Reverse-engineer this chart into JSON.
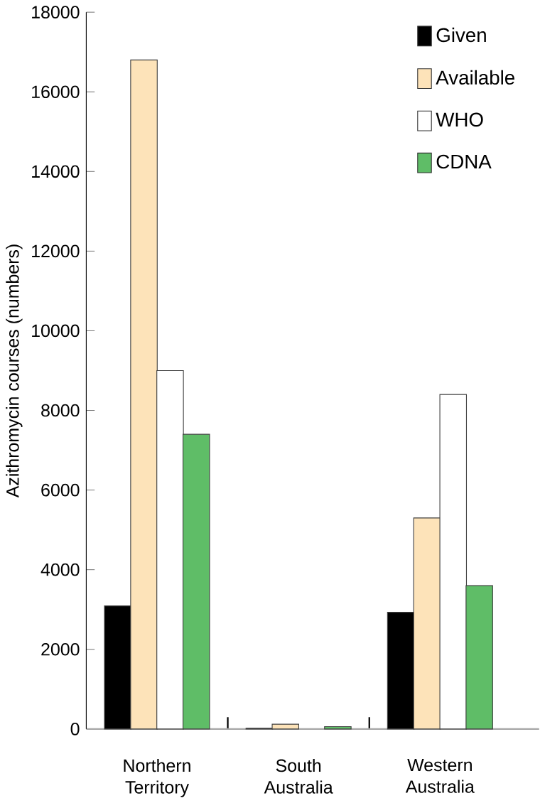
{
  "chart_data": {
    "type": "bar",
    "ylabel": "Azithromycin courses (numbers)",
    "categories": [
      "Northern Territory",
      "South Australia",
      "Western Australia"
    ],
    "series": [
      {
        "name": "Given",
        "color": "#000000",
        "values": [
          3090,
          20,
          2930
        ]
      },
      {
        "name": "Available",
        "color": "#fde3b9",
        "values": [
          16800,
          120,
          5300
        ]
      },
      {
        "name": "WHO",
        "color": "#ffffff",
        "values": [
          9000,
          null,
          8400
        ]
      },
      {
        "name": "CDNA",
        "color": "#5fbd67",
        "values": [
          7400,
          60,
          3600
        ]
      }
    ],
    "ylim": [
      0,
      18000
    ],
    "yticks": [
      0,
      2000,
      4000,
      6000,
      8000,
      10000,
      12000,
      14000,
      16000,
      18000
    ],
    "grid": false,
    "legend": "top right"
  }
}
